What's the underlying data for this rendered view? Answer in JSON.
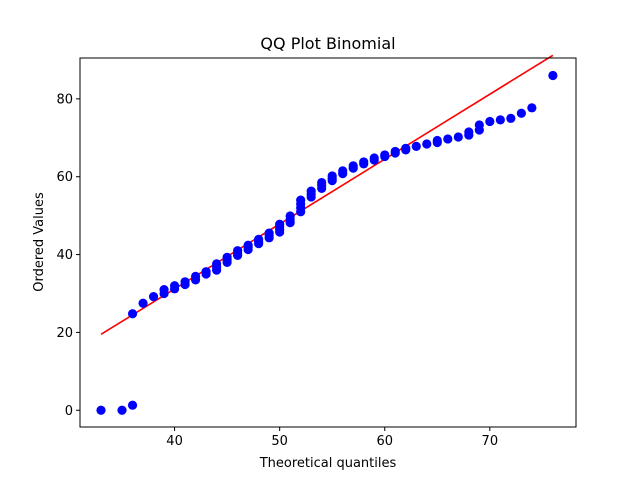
{
  "chart_data": {
    "type": "scatter",
    "title": "QQ Plot Binomial",
    "xlabel": "Theoretical quantiles",
    "ylabel": "Ordered Values",
    "xlim": [
      31.0,
      78.2
    ],
    "ylim": [
      -4.3,
      90.5
    ],
    "xticks": [
      40,
      50,
      60,
      70
    ],
    "yticks": [
      0,
      20,
      40,
      60,
      80
    ],
    "grid": false,
    "legend": "none",
    "marker_color": "#0000ff",
    "line_color": "#ff0000",
    "fit_line": {
      "x": [
        33,
        76
      ],
      "y": [
        19.5,
        91.2
      ]
    },
    "points": {
      "x": [
        33,
        35,
        36,
        36,
        37,
        38,
        39,
        39,
        40,
        40,
        41,
        41,
        42,
        42,
        43,
        43,
        44,
        44,
        44,
        45,
        45,
        45,
        46,
        46,
        46,
        47,
        47,
        47,
        48,
        48,
        48,
        49,
        49,
        49,
        50,
        50,
        50,
        50,
        51,
        51,
        51,
        52,
        52,
        52,
        52,
        53,
        53,
        53,
        54,
        54,
        54,
        55,
        55,
        55,
        56,
        56,
        57,
        57,
        58,
        58,
        59,
        59,
        60,
        60,
        61,
        61,
        62,
        62,
        63,
        64,
        65,
        65,
        66,
        67,
        68,
        68,
        69,
        69,
        70,
        71,
        72,
        73,
        74,
        76
      ],
      "y": [
        0,
        0,
        1.3,
        24.8,
        27.5,
        29.2,
        30.0,
        31.0,
        31.2,
        32.0,
        32.3,
        33.0,
        33.5,
        34.4,
        35.0,
        35.6,
        36.0,
        36.8,
        37.6,
        38.0,
        38.7,
        39.3,
        39.8,
        40.4,
        41.0,
        41.3,
        41.9,
        42.4,
        42.8,
        43.4,
        43.9,
        44.3,
        44.9,
        45.5,
        45.8,
        46.4,
        47.1,
        47.8,
        48.2,
        49.0,
        49.9,
        51.0,
        52.0,
        53.0,
        54.0,
        54.8,
        55.5,
        56.3,
        57.0,
        57.8,
        58.5,
        59.0,
        59.6,
        60.2,
        60.8,
        61.5,
        62.2,
        62.8,
        63.3,
        63.8,
        64.3,
        64.8,
        65.2,
        65.6,
        66.1,
        66.5,
        66.9,
        67.3,
        67.8,
        68.4,
        68.8,
        69.3,
        69.7,
        70.2,
        70.7,
        71.5,
        72.0,
        73.3,
        74.2,
        74.6,
        75.0,
        76.3,
        77.7,
        86.0
      ]
    }
  }
}
